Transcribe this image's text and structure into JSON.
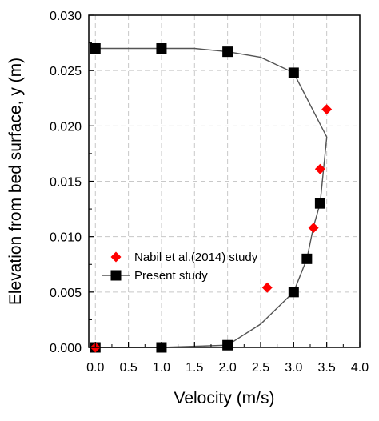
{
  "chart_data": {
    "type": "scatter",
    "xlabel": "Velocity (m/s)",
    "ylabel": "Elevation from bed surface, y (m)",
    "xlim": [
      -0.1,
      4.0
    ],
    "ylim": [
      0.0,
      0.03
    ],
    "grid": true,
    "legend_position": "center-left",
    "x_ticks": [
      0.0,
      0.5,
      1.0,
      1.5,
      2.0,
      2.5,
      3.0,
      3.5,
      4.0
    ],
    "x_tick_labels": [
      "0.0",
      "0.5",
      "1.0",
      "1.5",
      "2.0",
      "2.5",
      "3.0",
      "3.5",
      "4.0"
    ],
    "y_ticks": [
      0.0,
      0.005,
      0.01,
      0.015,
      0.02,
      0.025,
      0.03
    ],
    "y_tick_labels": [
      "0.000",
      "0.005",
      "0.010",
      "0.015",
      "0.020",
      "0.025",
      "0.030"
    ],
    "series": [
      {
        "name": "Nabil et al.(2014) study",
        "marker": "diamond",
        "color": "#ff0000",
        "points": [
          {
            "x": 0.0,
            "y": 0.0
          },
          {
            "x": 2.6,
            "y": 0.0054
          },
          {
            "x": 3.3,
            "y": 0.0108
          },
          {
            "x": 3.4,
            "y": 0.0161
          },
          {
            "x": 3.5,
            "y": 0.0215
          }
        ]
      },
      {
        "name": "Present study",
        "marker": "square",
        "color": "#000000",
        "line": [
          {
            "x": 0.0,
            "y": 0.0
          },
          {
            "x": 1.0,
            "y": 0.0
          },
          {
            "x": 2.0,
            "y": 0.0002
          },
          {
            "x": 2.5,
            "y": 0.0021
          },
          {
            "x": 3.0,
            "y": 0.005
          },
          {
            "x": 3.2,
            "y": 0.008
          },
          {
            "x": 3.3,
            "y": 0.0109
          },
          {
            "x": 3.4,
            "y": 0.013
          },
          {
            "x": 3.5,
            "y": 0.019
          },
          {
            "x": 3.0,
            "y": 0.0248
          },
          {
            "x": 2.5,
            "y": 0.0262
          },
          {
            "x": 2.0,
            "y": 0.0267
          },
          {
            "x": 1.5,
            "y": 0.027
          },
          {
            "x": 1.0,
            "y": 0.027
          },
          {
            "x": 0.0,
            "y": 0.027
          }
        ],
        "points": [
          {
            "x": 0.0,
            "y": 0.0
          },
          {
            "x": 1.0,
            "y": 0.0
          },
          {
            "x": 2.0,
            "y": 0.0002
          },
          {
            "x": 3.0,
            "y": 0.005
          },
          {
            "x": 3.2,
            "y": 0.008
          },
          {
            "x": 3.4,
            "y": 0.013
          },
          {
            "x": 3.0,
            "y": 0.0248
          },
          {
            "x": 2.0,
            "y": 0.0267
          },
          {
            "x": 1.0,
            "y": 0.027
          },
          {
            "x": 0.0,
            "y": 0.027
          }
        ]
      }
    ]
  }
}
